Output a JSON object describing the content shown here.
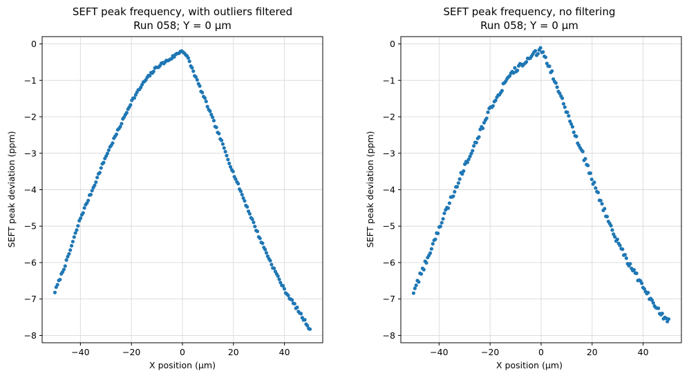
{
  "chart_data": [
    {
      "type": "scatter",
      "title": "SEFT peak frequency, with outliers filtered",
      "subtitle": "Run 058; Y = 0 µm",
      "xlabel": "X position (µm)",
      "ylabel": "SEFT peak deviation (ppm)",
      "xlim": [
        -55,
        55
      ],
      "ylim": [
        -8.2,
        0.2
      ],
      "xticks": [
        -40,
        -20,
        0,
        20,
        40
      ],
      "xtick_labels": [
        "−40",
        "−20",
        "0",
        "20",
        "40"
      ],
      "yticks": [
        0,
        -1,
        -2,
        -3,
        -4,
        -5,
        -6,
        -7,
        -8
      ],
      "ytick_labels": [
        "0",
        "−1",
        "−2",
        "−3",
        "−4",
        "−5",
        "−6",
        "−7",
        "−8"
      ],
      "grid": true,
      "color": "#1f77b4",
      "x_range": [
        -50,
        50
      ],
      "n_points": 200,
      "series": [
        {
          "points": [
            [
              -50,
              -6.8
            ],
            [
              -45,
              -5.88
            ],
            [
              -40,
              -4.78
            ],
            [
              -35,
              -3.95
            ],
            [
              -30,
              -3.08
            ],
            [
              -25,
              -2.34
            ],
            [
              -20,
              -1.58
            ],
            [
              -15,
              -1.04
            ],
            [
              -10,
              -0.63
            ],
            [
              -5,
              -0.42
            ],
            [
              -2,
              -0.27
            ],
            [
              0,
              -0.17
            ],
            [
              2,
              -0.37
            ],
            [
              5,
              -0.88
            ],
            [
              10,
              -1.73
            ],
            [
              15,
              -2.62
            ],
            [
              20,
              -3.55
            ],
            [
              25,
              -4.42
            ],
            [
              30,
              -5.28
            ],
            [
              35,
              -6.05
            ],
            [
              40,
              -6.75
            ],
            [
              45,
              -7.27
            ],
            [
              50,
              -7.83
            ]
          ],
          "jitter": 0.04
        }
      ]
    },
    {
      "type": "scatter",
      "title": "SEFT peak frequency, no filtering",
      "subtitle": "Run 058; Y = 0 µm",
      "xlabel": "X position (µm)",
      "ylabel": "SEFT peak deviation (ppm)",
      "xlim": [
        -55,
        55
      ],
      "ylim": [
        -8.2,
        0.2
      ],
      "xticks": [
        -40,
        -20,
        0,
        20,
        40
      ],
      "xtick_labels": [
        "−40",
        "−20",
        "0",
        "20",
        "40"
      ],
      "yticks": [
        0,
        -1,
        -2,
        -3,
        -4,
        -5,
        -6,
        -7,
        -8
      ],
      "ytick_labels": [
        "0",
        "−1",
        "−2",
        "−3",
        "−4",
        "−5",
        "−6",
        "−7",
        "−8"
      ],
      "grid": true,
      "color": "#1f77b4",
      "x_range": [
        -50,
        50
      ],
      "n_points": 200,
      "series": [
        {
          "points": [
            [
              -50,
              -6.8
            ],
            [
              -45,
              -5.95
            ],
            [
              -40,
              -5.05
            ],
            [
              -35,
              -4.2
            ],
            [
              -30,
              -3.35
            ],
            [
              -25,
              -2.58
            ],
            [
              -20,
              -1.78
            ],
            [
              -15,
              -1.17
            ],
            [
              -10,
              -0.7
            ],
            [
              -5,
              -0.43
            ],
            [
              -2,
              -0.25
            ],
            [
              0,
              -0.17
            ],
            [
              2,
              -0.42
            ],
            [
              5,
              -0.95
            ],
            [
              10,
              -1.83
            ],
            [
              15,
              -2.78
            ],
            [
              20,
              -3.72
            ],
            [
              25,
              -4.6
            ],
            [
              30,
              -5.45
            ],
            [
              35,
              -6.1
            ],
            [
              40,
              -6.65
            ],
            [
              45,
              -7.25
            ],
            [
              50,
              -7.62
            ]
          ],
          "jitter": 0.08
        }
      ]
    }
  ]
}
